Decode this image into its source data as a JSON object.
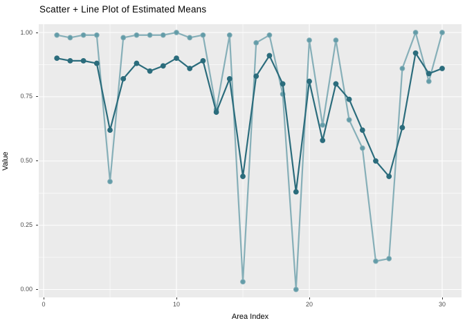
{
  "page": {
    "background_color": "#FFFFFF",
    "panel_background_color": "#EBEBEB",
    "gridline_color": "#FFFFFF",
    "tick_label_color": "#4D4D4D",
    "axis_title_color": "#000000"
  },
  "chart_data": {
    "type": "line",
    "title": "Scatter + Line Plot of Estimated Means",
    "xlabel": "Area Index",
    "ylabel": "Value",
    "legend": "none",
    "grid": "white major and minor gridlines on grey panel",
    "xlim": [
      -0.45,
      31.45
    ],
    "ylim": [
      -0.031,
      1.031
    ],
    "x": [
      1,
      2,
      3,
      4,
      5,
      6,
      7,
      8,
      9,
      10,
      11,
      12,
      13,
      14,
      15,
      16,
      17,
      18,
      19,
      20,
      21,
      22,
      23,
      24,
      25,
      26,
      27,
      28,
      29,
      30
    ],
    "series": [
      {
        "name": "light-teal-series",
        "line_color": "#86AFB8",
        "point_color": "#639CA8",
        "values": [
          0.99,
          0.98,
          0.99,
          0.99,
          0.42,
          0.98,
          0.99,
          0.99,
          0.99,
          1.0,
          0.98,
          0.99,
          0.7,
          0.99,
          0.03,
          0.96,
          0.99,
          0.76,
          0.0,
          0.97,
          0.64,
          0.97,
          0.66,
          0.55,
          0.11,
          0.12,
          0.86,
          1.0,
          0.81,
          1.0
        ]
      },
      {
        "name": "dark-teal-series",
        "line_color": "#2B6C7C",
        "point_color": "#2B6C7C",
        "values": [
          0.9,
          0.89,
          0.89,
          0.88,
          0.62,
          0.82,
          0.88,
          0.85,
          0.87,
          0.9,
          0.86,
          0.89,
          0.69,
          0.82,
          0.44,
          0.83,
          0.91,
          0.8,
          0.38,
          0.81,
          0.58,
          0.8,
          0.74,
          0.62,
          0.5,
          0.44,
          0.63,
          0.92,
          0.84,
          0.86
        ]
      }
    ],
    "x_ticks": [
      {
        "label": "0",
        "value": 0
      },
      {
        "label": "10",
        "value": 10
      },
      {
        "label": "20",
        "value": 20
      },
      {
        "label": "30",
        "value": 30
      }
    ],
    "y_ticks": [
      {
        "label": "1.00",
        "value": 1.0
      },
      {
        "label": "0.75",
        "value": 0.75
      },
      {
        "label": "0.50",
        "value": 0.5
      },
      {
        "label": "0.25",
        "value": 0.25
      },
      {
        "label": "0.00",
        "value": 0.0
      }
    ],
    "x_minor_ticks": [
      5,
      15,
      25
    ],
    "y_minor_ticks": [
      0.875,
      0.625,
      0.375,
      0.125
    ]
  }
}
